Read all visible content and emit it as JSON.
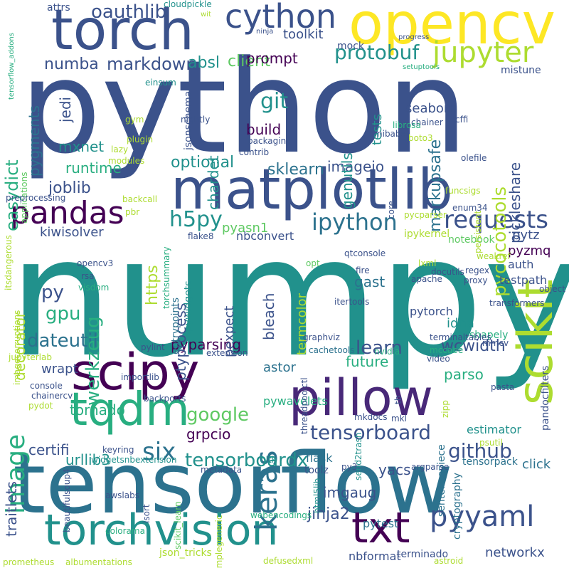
{
  "colors": {
    "c1": "#3b528b",
    "c2": "#2c728e",
    "c3": "#21918c",
    "c4": "#28ae80",
    "c5": "#5ec962",
    "c6": "#addc30",
    "c7": "#fde725",
    "c8": "#440154",
    "c9": "#482878",
    "c10": "#31688e"
  },
  "words": [
    "python",
    "numpy",
    "tensorflow",
    "matplotlib",
    "opencv",
    "torch",
    "scipy",
    "pillow",
    "scikit",
    "tqdm",
    "torchvision",
    "txt",
    "pandas",
    "cython",
    "jupyter",
    "keras",
    "pyyaml",
    "requests",
    "image",
    "tensorboard",
    "tensorboardx",
    "protobuf",
    "ipython",
    "six",
    "markdown",
    "oauthlib",
    "git",
    "client",
    "easydict",
    "gpu",
    "learn",
    "dateutil",
    "werkzeug",
    "pycocotools",
    "h5py",
    "github",
    "google",
    "sklearn",
    "mxnet",
    "runtime",
    "joblib",
    "optional",
    "absl",
    "https",
    "numba",
    "pygments",
    "prompt",
    "toolkit",
    "imageio",
    "build",
    "chardet",
    "genutils",
    "markupsafe",
    "pickleshare",
    "seaborn",
    "tests",
    "kiwisolver",
    "py",
    "decorator",
    "pyasn1",
    "pyparsing",
    "astor",
    "future",
    "wcwidth",
    "parso",
    "pytz",
    "pyzmq",
    "gast",
    "idna",
    "bleach",
    "pexpect",
    "ptyprocess",
    "termcolor",
    "tornado",
    "grpcio",
    "certifi",
    "urllib3",
    "jinja2",
    "imgaug",
    "yacs",
    "click",
    "traitlets",
    "wrapt",
    "jedi",
    "auth",
    "nbconvert",
    "ipykernel",
    "notebook",
    "networkx",
    "nbformat",
    "terminado",
    "pytorch",
    "testpath",
    "shapely",
    "estimator",
    "mock",
    "toolz",
    "flask",
    "pytest",
    "html5lib",
    "itertools",
    "pywavelets",
    "mistune",
    "attrs",
    "cloudpickle",
    "wit",
    "ninja",
    "progress",
    "setuptools",
    "einsum",
    "jsonschema",
    "nibabel",
    "librosa",
    "chainer",
    "boto3",
    "cffi",
    "plugin",
    "gym",
    "nightly",
    "packaging",
    "contrib",
    "modules",
    "lazy",
    "olefile",
    "funcsigs",
    "enum34",
    "persistent",
    "core",
    "applications",
    "preprocessing",
    "backcall",
    "pycparser",
    "torchsummary",
    "flake8",
    "pbr",
    "itsdangerous",
    "imagecorruptions",
    "opencv3",
    "rsa",
    "visdom",
    "entrypoints",
    "ipywidgets",
    "qtconsole",
    "opt",
    "weakref",
    "regex",
    "proxy",
    "apache",
    "fire",
    "lxml",
    "docutils",
    "object",
    "pandocfilters",
    "transformers",
    "terminaltables",
    "mmcv",
    "graphviz",
    "mccabe",
    "video",
    "cachetools",
    "threadpoolctl",
    "nvidia",
    "pasta",
    "extension",
    "pylint",
    "jupyterlab",
    "importlib",
    "console",
    "chainercv",
    "pydot",
    "backports",
    "zipp",
    "tb",
    "mkdocs",
    "mkl",
    "send2trash",
    "psutil",
    "keyring",
    "metadata",
    "nltk",
    "widgetsnbextension",
    "sentencepiece",
    "tensorpack",
    "py3",
    "argparse",
    "cryptography",
    "beautifulsoup4",
    "isort",
    "scikit_learn",
    "simplegeneric",
    "awslabs",
    "webencodings",
    "colorama",
    "json_tricks",
    "prometheus",
    "albumentations",
    "defusedxml",
    "astroid",
    "tensorflow_addons",
    "regex2",
    "qt"
  ]
}
